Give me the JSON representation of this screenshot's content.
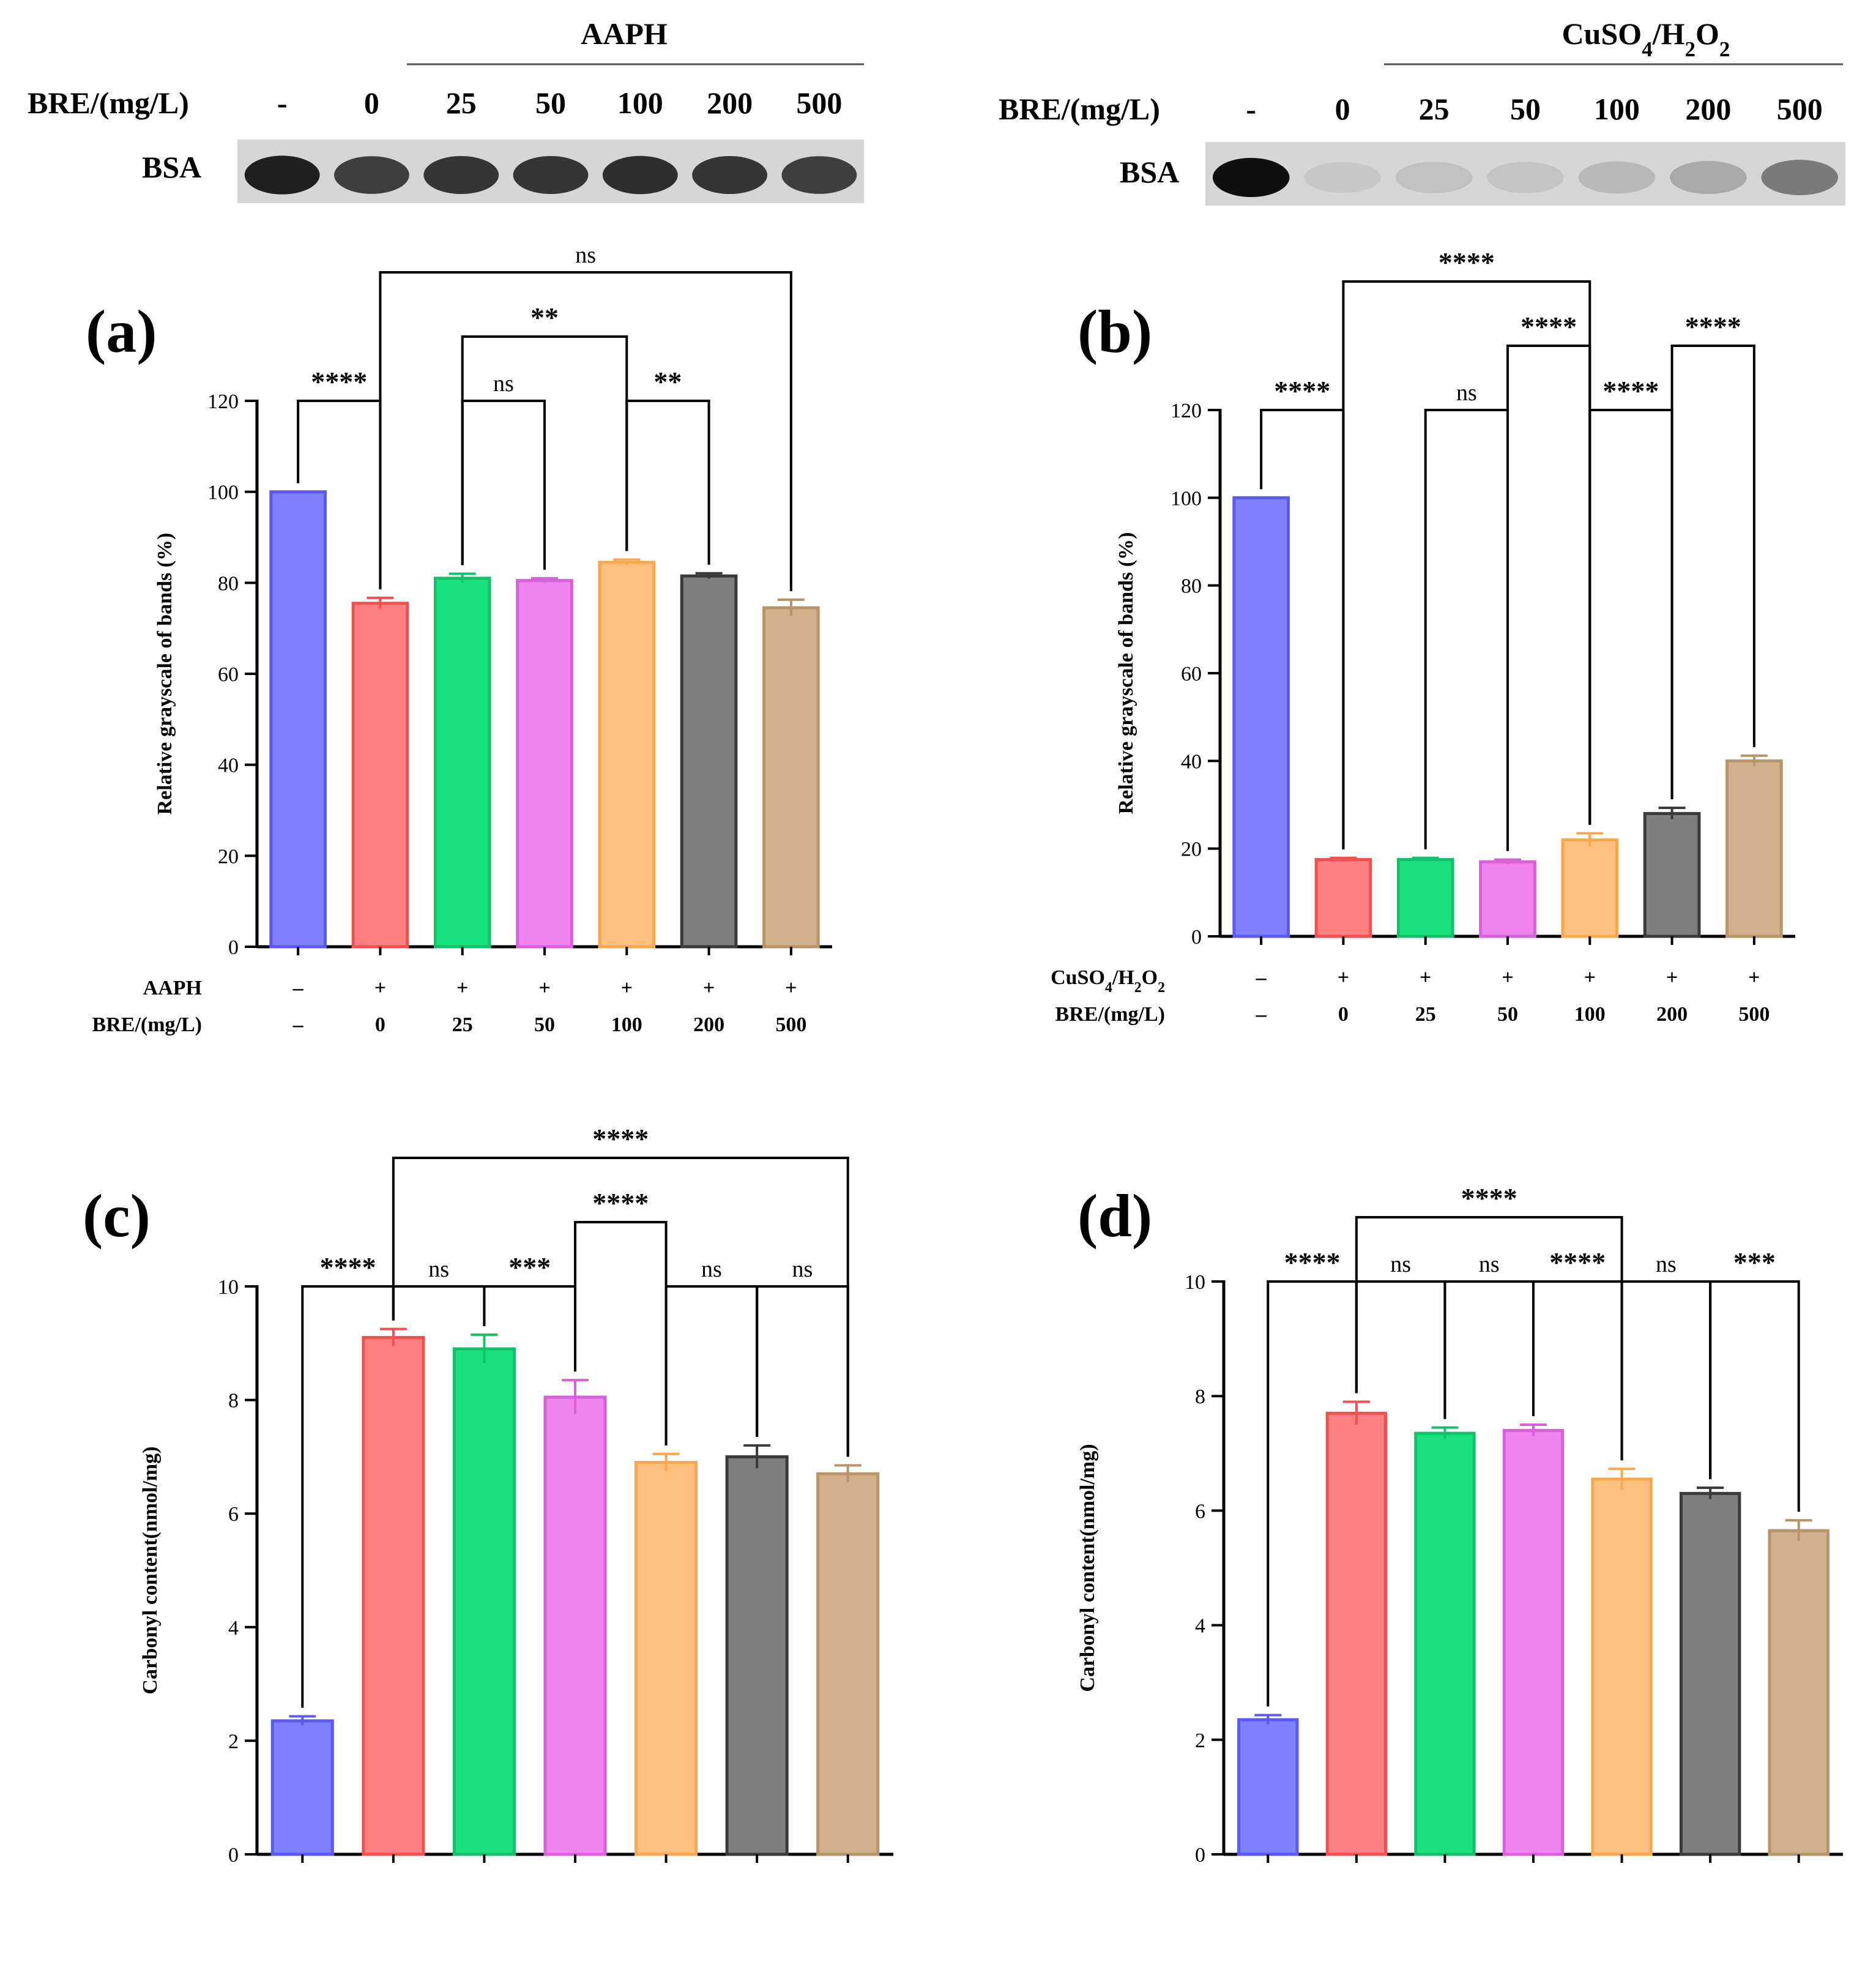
{
  "gels": [
    {
      "treatment_label": "AAPH",
      "row_label": "BRE/(mg/L)",
      "band_label": "BSA",
      "lanes": [
        "-",
        "0",
        "25",
        "50",
        "100",
        "200",
        "500"
      ],
      "band_intensity": [
        0.95,
        0.85,
        0.88,
        0.88,
        0.9,
        0.88,
        0.85
      ]
    },
    {
      "treatment_label": "CuSO4/H2O2",
      "treatment_label_parts": [
        "CuSO",
        "4",
        "/H",
        "2",
        "O",
        "2"
      ],
      "row_label": "BRE/(mg/L)",
      "band_label": "BSA",
      "lanes": [
        "-",
        "0",
        "25",
        "50",
        "100",
        "200",
        "500"
      ],
      "band_intensity": [
        1.0,
        0.15,
        0.22,
        0.2,
        0.28,
        0.38,
        0.62
      ]
    }
  ],
  "chart_data": [
    {
      "type": "bar",
      "panel_label": "(a)",
      "ylabel": "Relative grayscale of bands (%)",
      "ylim": [
        0,
        120
      ],
      "yticks": [
        0,
        20,
        40,
        60,
        80,
        100,
        120
      ],
      "row1_label": "AAPH",
      "row1_values": [
        "–",
        "+",
        "+",
        "+",
        "+",
        "+",
        "+"
      ],
      "row2_label": "BRE/(mg/L)",
      "row2_values": [
        "–",
        "0",
        "25",
        "50",
        "100",
        "200",
        "500"
      ],
      "values": [
        100,
        75.5,
        81,
        80.5,
        84.5,
        81.5,
        74.5
      ],
      "errors": [
        0,
        1.2,
        1.0,
        0.5,
        0.6,
        0.6,
        1.8
      ],
      "colors": [
        "#7f7fff",
        "#ff8080",
        "#19e17f",
        "#ef83ef",
        "#ffbf7f",
        "#7f7f7f",
        "#d2b08c"
      ],
      "edge_colors": [
        "#5a5af0",
        "#f05050",
        "#14c06a",
        "#d860d8",
        "#f5a850",
        "#3a3a3a",
        "#b8946a"
      ],
      "significance": [
        {
          "from": 0,
          "to": 1,
          "label": "****",
          "level": 0
        },
        {
          "from": 2,
          "to": 3,
          "label": "ns",
          "level": 0
        },
        {
          "from": 4,
          "to": 5,
          "label": "**",
          "level": 0
        },
        {
          "from": 2,
          "to": 4,
          "label": "**",
          "level": 1
        },
        {
          "from": 1,
          "to": 6,
          "label": "ns",
          "level": 2
        }
      ]
    },
    {
      "type": "bar",
      "panel_label": "(b)",
      "ylabel": "Relative grayscale of bands (%)",
      "ylim": [
        0,
        120
      ],
      "yticks": [
        0,
        20,
        40,
        60,
        80,
        100,
        120
      ],
      "row1_label": "CuSO4/H2O2",
      "row1_label_parts": [
        "CuSO",
        "4",
        "/H",
        "2",
        "O",
        "2"
      ],
      "row1_values": [
        "–",
        "+",
        "+",
        "+",
        "+",
        "+",
        "+"
      ],
      "row2_label": "BRE/(mg/L)",
      "row2_values": [
        "–",
        "0",
        "25",
        "50",
        "100",
        "200",
        "500"
      ],
      "values": [
        100,
        17.5,
        17.5,
        17,
        22,
        28,
        40
      ],
      "errors": [
        0,
        0.4,
        0.4,
        0.5,
        1.5,
        1.3,
        1.2
      ],
      "colors": [
        "#7f7fff",
        "#ff8080",
        "#19e17f",
        "#ef83ef",
        "#ffbf7f",
        "#7f7f7f",
        "#d2b08c"
      ],
      "edge_colors": [
        "#5a5af0",
        "#f05050",
        "#14c06a",
        "#d860d8",
        "#f5a850",
        "#3a3a3a",
        "#b8946a"
      ],
      "significance": [
        {
          "from": 0,
          "to": 1,
          "label": "****",
          "level": 0
        },
        {
          "from": 2,
          "to": 3,
          "label": "ns",
          "level": 0
        },
        {
          "from": 4,
          "to": 5,
          "label": "****",
          "level": 0
        },
        {
          "from": 3,
          "to": 4,
          "label": "****",
          "level": 1
        },
        {
          "from": 5,
          "to": 6,
          "label": "****",
          "level": 1
        },
        {
          "from": 1,
          "to": 4,
          "label": "****",
          "level": 2
        }
      ]
    },
    {
      "type": "bar",
      "panel_label": "(c)",
      "ylabel": "Carbonyl content(nmol/mg)",
      "ylim": [
        0,
        10
      ],
      "yticks": [
        0,
        2,
        4,
        6,
        8,
        10
      ],
      "row1_label": "AAPH",
      "row1_values": [
        "–",
        "+",
        "+",
        "+",
        "+",
        "+",
        "+"
      ],
      "row2_label": "BRE/(mg/L)",
      "row2_values": [
        "–",
        "0",
        "25",
        "50",
        "100",
        "200",
        "500"
      ],
      "values": [
        2.35,
        9.1,
        8.9,
        8.05,
        6.9,
        7.0,
        6.7
      ],
      "errors": [
        0.08,
        0.15,
        0.25,
        0.3,
        0.15,
        0.2,
        0.15
      ],
      "colors": [
        "#7f7fff",
        "#ff8080",
        "#19e17f",
        "#ef83ef",
        "#ffbf7f",
        "#7f7f7f",
        "#d2b08c"
      ],
      "edge_colors": [
        "#5a5af0",
        "#f05050",
        "#14c06a",
        "#d860d8",
        "#f5a850",
        "#3a3a3a",
        "#b8946a"
      ],
      "significance": [
        {
          "from": 0,
          "to": 1,
          "label": "****",
          "level": 0
        },
        {
          "from": 1,
          "to": 2,
          "label": "ns",
          "level": 0
        },
        {
          "from": 2,
          "to": 3,
          "label": "***",
          "level": 0
        },
        {
          "from": 4,
          "to": 5,
          "label": "ns",
          "level": 0
        },
        {
          "from": 5,
          "to": 6,
          "label": "ns",
          "level": 0
        },
        {
          "from": 3,
          "to": 4,
          "label": "****",
          "level": 1
        },
        {
          "from": 1,
          "to": 6,
          "label": "****",
          "level": 2
        }
      ]
    },
    {
      "type": "bar",
      "panel_label": "(d)",
      "ylabel": "Carbonyl content(nmol/mg)",
      "ylim": [
        0,
        10
      ],
      "yticks": [
        0,
        2,
        4,
        6,
        8,
        10
      ],
      "row1_label": "CuSO4/H2O2",
      "row1_label_parts": [
        "CuSO",
        "4",
        "/H",
        "2",
        "O",
        "2"
      ],
      "row1_values": [
        "–",
        "+",
        "+",
        "+",
        "+",
        "+",
        "+"
      ],
      "row2_label": "BRE/(mg/L)",
      "row2_values": [
        "–",
        "0",
        "25",
        "50",
        "100",
        "200",
        "500"
      ],
      "values": [
        2.35,
        7.7,
        7.35,
        7.4,
        6.55,
        6.3,
        5.65
      ],
      "errors": [
        0.08,
        0.2,
        0.1,
        0.1,
        0.18,
        0.1,
        0.18
      ],
      "colors": [
        "#7f7fff",
        "#ff8080",
        "#19e17f",
        "#ef83ef",
        "#ffbf7f",
        "#7f7f7f",
        "#d2b08c"
      ],
      "edge_colors": [
        "#5a5af0",
        "#f05050",
        "#14c06a",
        "#d860d8",
        "#f5a850",
        "#3a3a3a",
        "#b8946a"
      ],
      "significance": [
        {
          "from": 0,
          "to": 1,
          "label": "****",
          "level": 0
        },
        {
          "from": 1,
          "to": 2,
          "label": "ns",
          "level": 0
        },
        {
          "from": 2,
          "to": 3,
          "label": "ns",
          "level": 0
        },
        {
          "from": 3,
          "to": 4,
          "label": "****",
          "level": 0
        },
        {
          "from": 4,
          "to": 5,
          "label": "ns",
          "level": 0
        },
        {
          "from": 5,
          "to": 6,
          "label": "***",
          "level": 0
        },
        {
          "from": 1,
          "to": 4,
          "label": "****",
          "level": 1
        }
      ]
    }
  ]
}
